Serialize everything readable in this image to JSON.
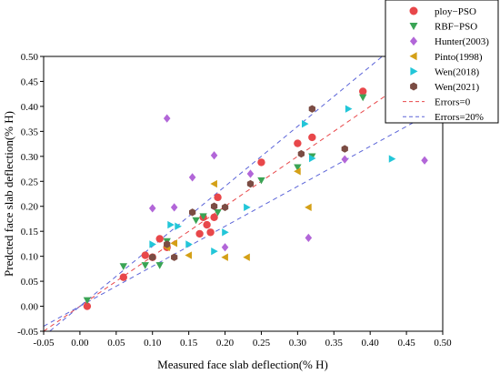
{
  "chart_data": {
    "type": "scatter",
    "xlabel": "Measured face slab deflection(% H)",
    "ylabel": "Predcted face slab deflection(% H)",
    "xlim": [
      -0.05,
      0.5
    ],
    "ylim": [
      -0.05,
      0.5
    ],
    "x_ticks": [
      "-0.05",
      "0.00",
      "0.05",
      "0.10",
      "0.15",
      "0.20",
      "0.25",
      "0.30",
      "0.35",
      "0.40",
      "0.45",
      "0.50"
    ],
    "y_ticks": [
      "-0.05",
      "0.00",
      "0.05",
      "0.10",
      "0.15",
      "0.20",
      "0.25",
      "0.30",
      "0.35",
      "0.40",
      "0.45",
      "0.50"
    ],
    "grid": false,
    "legend_position": "top-right",
    "series": [
      {
        "name": "ploy−PSO",
        "marker": "circle",
        "color": "#e8474a",
        "points": [
          [
            0.01,
            0.0
          ],
          [
            0.06,
            0.058
          ],
          [
            0.09,
            0.102
          ],
          [
            0.1,
            0.098
          ],
          [
            0.11,
            0.135
          ],
          [
            0.12,
            0.118
          ],
          [
            0.17,
            0.178
          ],
          [
            0.175,
            0.163
          ],
          [
            0.18,
            0.148
          ],
          [
            0.185,
            0.178
          ],
          [
            0.165,
            0.145
          ],
          [
            0.19,
            0.218
          ],
          [
            0.25,
            0.288
          ],
          [
            0.3,
            0.326
          ],
          [
            0.32,
            0.338
          ],
          [
            0.39,
            0.43
          ]
        ]
      },
      {
        "name": "RBF−PSO",
        "marker": "triangle-down",
        "color": "#3aa455",
        "points": [
          [
            0.01,
            0.012
          ],
          [
            0.06,
            0.08
          ],
          [
            0.09,
            0.082
          ],
          [
            0.11,
            0.082
          ],
          [
            0.12,
            0.13
          ],
          [
            0.16,
            0.172
          ],
          [
            0.17,
            0.18
          ],
          [
            0.19,
            0.188
          ],
          [
            0.25,
            0.252
          ],
          [
            0.3,
            0.278
          ],
          [
            0.32,
            0.3
          ],
          [
            0.39,
            0.418
          ]
        ]
      },
      {
        "name": "Hunter(2003)",
        "marker": "diamond",
        "color": "#b266d8",
        "points": [
          [
            0.1,
            0.196
          ],
          [
            0.12,
            0.376
          ],
          [
            0.13,
            0.198
          ],
          [
            0.155,
            0.258
          ],
          [
            0.185,
            0.302
          ],
          [
            0.2,
            0.118
          ],
          [
            0.235,
            0.265
          ],
          [
            0.315,
            0.137
          ],
          [
            0.365,
            0.294
          ],
          [
            0.475,
            0.292
          ]
        ]
      },
      {
        "name": "Pinto(1998)",
        "marker": "triangle-left",
        "color": "#d4a017",
        "points": [
          [
            0.12,
            0.118
          ],
          [
            0.13,
            0.126
          ],
          [
            0.15,
            0.102
          ],
          [
            0.185,
            0.245
          ],
          [
            0.2,
            0.098
          ],
          [
            0.23,
            0.098
          ],
          [
            0.3,
            0.27
          ],
          [
            0.315,
            0.198
          ]
        ]
      },
      {
        "name": "Wen(2018)",
        "marker": "triangle-right",
        "color": "#22c6d8",
        "points": [
          [
            0.1,
            0.124
          ],
          [
            0.125,
            0.163
          ],
          [
            0.135,
            0.16
          ],
          [
            0.15,
            0.124
          ],
          [
            0.185,
            0.11
          ],
          [
            0.2,
            0.148
          ],
          [
            0.23,
            0.198
          ],
          [
            0.31,
            0.365
          ],
          [
            0.32,
            0.296
          ],
          [
            0.37,
            0.395
          ],
          [
            0.43,
            0.295
          ]
        ]
      },
      {
        "name": "Wen(2021)",
        "marker": "hexagon",
        "color": "#7b4c43",
        "points": [
          [
            0.1,
            0.098
          ],
          [
            0.12,
            0.124
          ],
          [
            0.13,
            0.098
          ],
          [
            0.155,
            0.188
          ],
          [
            0.185,
            0.2
          ],
          [
            0.2,
            0.198
          ],
          [
            0.235,
            0.245
          ],
          [
            0.305,
            0.305
          ],
          [
            0.32,
            0.395
          ],
          [
            0.365,
            0.315
          ],
          [
            0.425,
            0.445
          ]
        ]
      }
    ],
    "reference_lines": [
      {
        "name": "Errors=0",
        "color": "#e8474a",
        "style": "dashed",
        "slope": 1.0
      },
      {
        "name": "Errors=20%",
        "color": "#5b64d8",
        "style": "dashed",
        "slopes": [
          1.2,
          0.8
        ]
      }
    ]
  }
}
